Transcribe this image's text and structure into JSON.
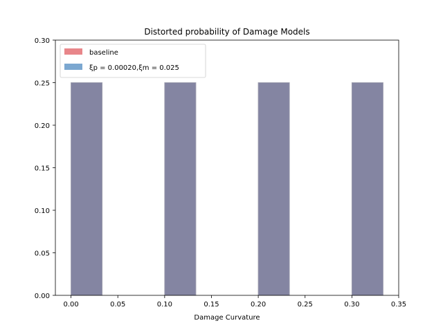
{
  "chart_data": {
    "type": "bar",
    "title": "Distorted probability of Damage Models",
    "xlabel": "Damage Curvature",
    "ylabel": "",
    "xlim": [
      -0.0167,
      0.35
    ],
    "ylim": [
      0,
      0.3
    ],
    "xticks": [
      "0.00",
      "0.05",
      "0.10",
      "0.15",
      "0.20",
      "0.25",
      "0.30",
      "0.35"
    ],
    "xtick_values": [
      0.0,
      0.05,
      0.1,
      0.15,
      0.2,
      0.25,
      0.3,
      0.35
    ],
    "yticks": [
      "0.00",
      "0.05",
      "0.10",
      "0.15",
      "0.20",
      "0.25",
      "0.30"
    ],
    "ytick_values": [
      0.0,
      0.05,
      0.1,
      0.15,
      0.2,
      0.25,
      0.3
    ],
    "bar_width": 0.0333,
    "grid": false,
    "legend_position": "top-left",
    "series": [
      {
        "name": "baseline",
        "color": "#e8868a",
        "bars": [
          {
            "x": 0.0,
            "value": 0.25
          },
          {
            "x": 0.1,
            "value": 0.25
          },
          {
            "x": 0.2,
            "value": 0.25
          },
          {
            "x": 0.3,
            "value": 0.25
          }
        ]
      },
      {
        "name": "ξp = 0.00020,ξm = 0.025",
        "color": "#7ba7d0",
        "bars": [
          {
            "x": 0.0,
            "value": 0.25
          },
          {
            "x": 0.1,
            "value": 0.25
          },
          {
            "x": 0.2,
            "value": 0.25
          },
          {
            "x": 0.3,
            "value": 0.25
          }
        ]
      }
    ],
    "overlap_color": "#8485a2"
  }
}
